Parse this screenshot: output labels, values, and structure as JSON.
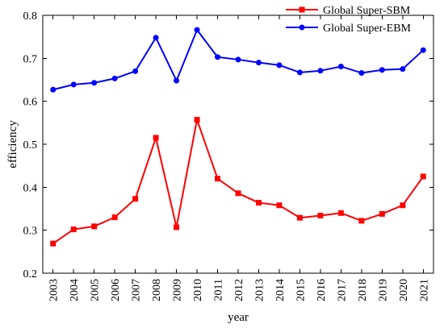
{
  "chart_data": {
    "type": "line",
    "title": "",
    "xlabel": "year",
    "ylabel": "efficiency",
    "ylim": [
      0.2,
      0.8
    ],
    "yticks": [
      "0.2",
      "0.3",
      "0.4",
      "0.5",
      "0.6",
      "0.7",
      "0.8"
    ],
    "categories": [
      "2003",
      "2004",
      "2005",
      "2006",
      "2007",
      "2008",
      "2009",
      "2010",
      "2011",
      "2012",
      "2013",
      "2014",
      "2015",
      "2016",
      "2017",
      "2018",
      "2019",
      "2020",
      "2021"
    ],
    "grid": false,
    "legend_position": "top-right",
    "series": [
      {
        "name": "Global Super-SBM",
        "color": "#ff0000",
        "marker": "square",
        "values": [
          0.269,
          0.302,
          0.309,
          0.33,
          0.373,
          0.515,
          0.307,
          0.557,
          0.42,
          0.386,
          0.364,
          0.358,
          0.329,
          0.334,
          0.34,
          0.322,
          0.338,
          0.358,
          0.425
        ]
      },
      {
        "name": "Global Super-EBM",
        "color": "#0000ff",
        "marker": "circle",
        "values": [
          0.627,
          0.639,
          0.643,
          0.653,
          0.67,
          0.748,
          0.648,
          0.766,
          0.703,
          0.697,
          0.69,
          0.684,
          0.667,
          0.671,
          0.681,
          0.666,
          0.673,
          0.675,
          0.719
        ]
      }
    ]
  }
}
